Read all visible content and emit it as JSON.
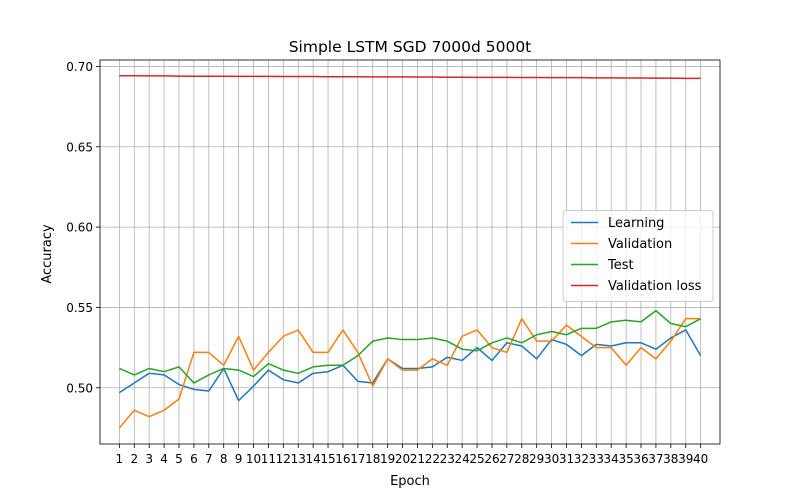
{
  "chart_data": {
    "type": "line",
    "title": "Simple LSTM SGD 7000d 5000t",
    "xlabel": "Epoch",
    "ylabel": "Accuracy",
    "ylim": [
      0.465,
      0.704
    ],
    "yticks": [
      0.5,
      0.55,
      0.6,
      0.65,
      0.7
    ],
    "ytick_labels": [
      "0.50",
      "0.55",
      "0.60",
      "0.65",
      "0.70"
    ],
    "x": [
      1,
      2,
      3,
      4,
      5,
      6,
      7,
      8,
      9,
      10,
      11,
      12,
      13,
      14,
      15,
      16,
      17,
      18,
      19,
      20,
      21,
      22,
      23,
      24,
      25,
      26,
      27,
      28,
      29,
      30,
      31,
      32,
      33,
      34,
      35,
      36,
      37,
      38,
      39,
      40
    ],
    "grid": true,
    "legend_position": "center-right",
    "series": [
      {
        "name": "Learning",
        "color": "#1f77b4",
        "values": [
          0.497,
          0.503,
          0.509,
          0.508,
          0.502,
          0.499,
          0.498,
          0.512,
          0.492,
          0.501,
          0.511,
          0.505,
          0.503,
          0.509,
          0.51,
          0.514,
          0.504,
          0.503,
          0.518,
          0.512,
          0.512,
          0.513,
          0.519,
          0.517,
          0.525,
          0.517,
          0.528,
          0.526,
          0.518,
          0.53,
          0.527,
          0.52,
          0.527,
          0.526,
          0.528,
          0.528,
          0.524,
          0.531,
          0.536,
          0.52
        ]
      },
      {
        "name": "Validation",
        "color": "#ff7f0e",
        "values": [
          0.475,
          0.486,
          0.482,
          0.486,
          0.493,
          0.522,
          0.522,
          0.514,
          0.532,
          0.511,
          0.522,
          0.532,
          0.536,
          0.522,
          0.522,
          0.536,
          0.522,
          0.501,
          0.518,
          0.511,
          0.511,
          0.518,
          0.514,
          0.532,
          0.536,
          0.525,
          0.522,
          0.543,
          0.529,
          0.529,
          0.539,
          0.532,
          0.525,
          0.525,
          0.514,
          0.525,
          0.518,
          0.529,
          0.543,
          0.543
        ]
      },
      {
        "name": "Test",
        "color": "#2ca02c",
        "values": [
          0.512,
          0.508,
          0.512,
          0.51,
          0.513,
          0.503,
          0.508,
          0.512,
          0.511,
          0.507,
          0.515,
          0.511,
          0.509,
          0.513,
          0.514,
          0.514,
          0.52,
          0.529,
          0.531,
          0.53,
          0.53,
          0.531,
          0.529,
          0.524,
          0.523,
          0.528,
          0.531,
          0.528,
          0.533,
          0.535,
          0.533,
          0.537,
          0.537,
          0.541,
          0.542,
          0.541,
          0.548,
          0.54,
          0.538,
          0.543
        ]
      },
      {
        "name": "Validation loss",
        "color": "#d62728",
        "values": [
          0.6942,
          0.6942,
          0.6941,
          0.6941,
          0.694,
          0.6939,
          0.6939,
          0.6939,
          0.6938,
          0.6938,
          0.6938,
          0.6937,
          0.6937,
          0.6937,
          0.6936,
          0.6936,
          0.6936,
          0.6935,
          0.6935,
          0.6935,
          0.6934,
          0.6934,
          0.6933,
          0.6933,
          0.6932,
          0.6932,
          0.6932,
          0.6931,
          0.6931,
          0.693,
          0.693,
          0.693,
          0.6929,
          0.6929,
          0.6928,
          0.6928,
          0.6927,
          0.6927,
          0.6926,
          0.6926
        ]
      }
    ]
  }
}
